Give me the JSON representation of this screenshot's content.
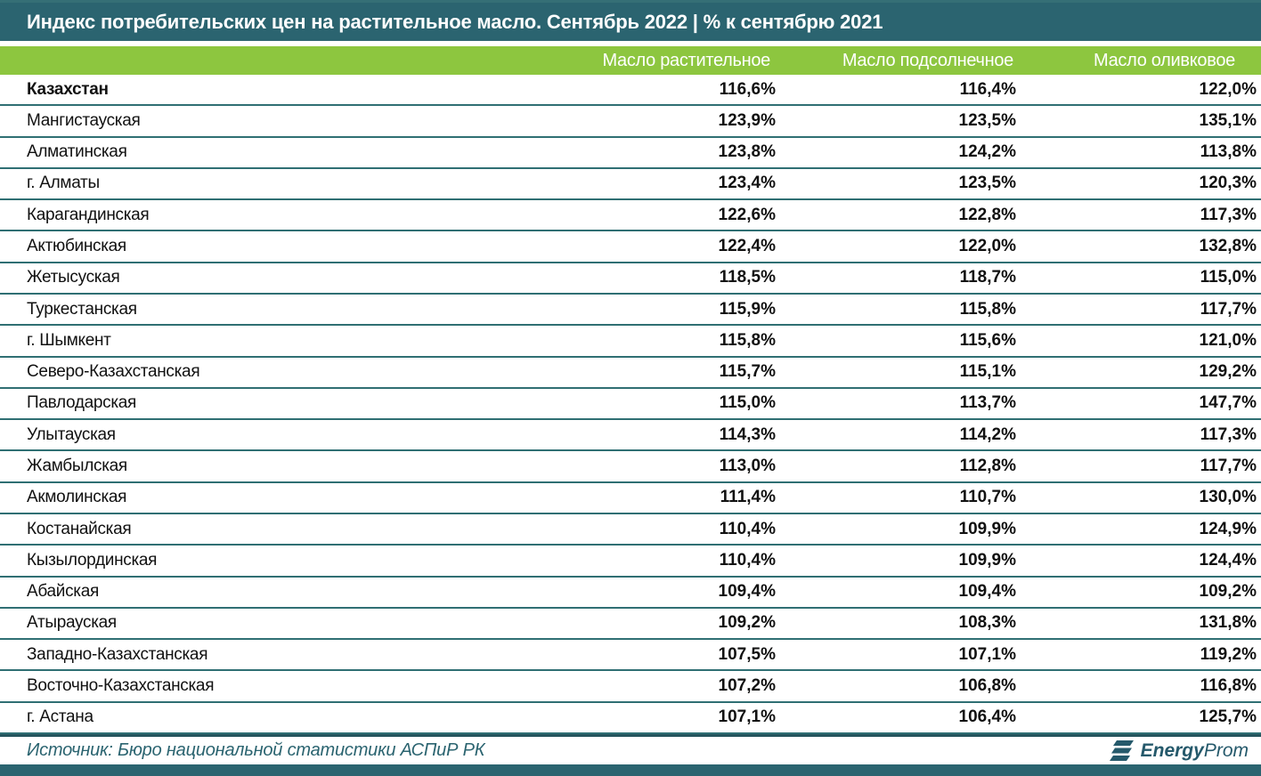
{
  "title": "Индекс потребительских цен на растительное масло. Сентябрь 2022 | % к сентябрю 2021",
  "colors": {
    "teal_bar": "#2B6470",
    "green_header": "#8DC63F",
    "row_divider": "#2F6F73",
    "footer_text": "#2B6470",
    "header_text": "#FFFFFF",
    "body_text": "#111111"
  },
  "chart_data": {
    "type": "table",
    "title": "Индекс потребительских цен на растительное масло. Сентябрь 2022 | % к сентябрю 2021",
    "columns": [
      "Масло растительное",
      "Масло подсолнечное",
      "Масло оливковое"
    ],
    "unit": "% к сентябрю 2021",
    "rows": [
      {
        "region": "Казахстан",
        "values": [
          "116,6%",
          "116,4%",
          "122,0%"
        ],
        "bold": true
      },
      {
        "region": "Мангистауская",
        "values": [
          "123,9%",
          "123,5%",
          "135,1%"
        ],
        "bold": false
      },
      {
        "region": "Алматинская",
        "values": [
          "123,8%",
          "124,2%",
          "113,8%"
        ],
        "bold": false
      },
      {
        "region": "г. Алматы",
        "values": [
          "123,4%",
          "123,5%",
          "120,3%"
        ],
        "bold": false
      },
      {
        "region": "Карагандинская",
        "values": [
          "122,6%",
          "122,8%",
          "117,3%"
        ],
        "bold": false
      },
      {
        "region": "Актюбинская",
        "values": [
          "122,4%",
          "122,0%",
          "132,8%"
        ],
        "bold": false
      },
      {
        "region": "Жетысуская",
        "values": [
          "118,5%",
          "118,7%",
          "115,0%"
        ],
        "bold": false
      },
      {
        "region": "Туркестанская",
        "values": [
          "115,9%",
          "115,8%",
          "117,7%"
        ],
        "bold": false
      },
      {
        "region": "г. Шымкент",
        "values": [
          "115,8%",
          "115,6%",
          "121,0%"
        ],
        "bold": false
      },
      {
        "region": "Северо-Казахстанская",
        "values": [
          "115,7%",
          "115,1%",
          "129,2%"
        ],
        "bold": false
      },
      {
        "region": "Павлодарская",
        "values": [
          "115,0%",
          "113,7%",
          "147,7%"
        ],
        "bold": false
      },
      {
        "region": "Улытауская",
        "values": [
          "114,3%",
          "114,2%",
          "117,3%"
        ],
        "bold": false
      },
      {
        "region": "Жамбылская",
        "values": [
          "113,0%",
          "112,8%",
          "117,7%"
        ],
        "bold": false
      },
      {
        "region": "Акмолинская",
        "values": [
          "111,4%",
          "110,7%",
          "130,0%"
        ],
        "bold": false
      },
      {
        "region": "Костанайская",
        "values": [
          "110,4%",
          "109,9%",
          "124,9%"
        ],
        "bold": false
      },
      {
        "region": "Кызылординская",
        "values": [
          "110,4%",
          "109,9%",
          "124,4%"
        ],
        "bold": false
      },
      {
        "region": "Абайская",
        "values": [
          "109,4%",
          "109,4%",
          "109,2%"
        ],
        "bold": false
      },
      {
        "region": "Атырауская",
        "values": [
          "109,2%",
          "108,3%",
          "131,8%"
        ],
        "bold": false
      },
      {
        "region": "Западно-Казахстанская",
        "values": [
          "107,5%",
          "107,1%",
          "119,2%"
        ],
        "bold": false
      },
      {
        "region": "Восточно-Казахстанская",
        "values": [
          "107,2%",
          "106,8%",
          "116,8%"
        ],
        "bold": false
      },
      {
        "region": "г. Астана",
        "values": [
          "107,1%",
          "106,4%",
          "125,7%"
        ],
        "bold": false
      }
    ]
  },
  "footer": {
    "source": "Источник: Бюро национальной статистики АСПиР РК",
    "logo_bold": "Energy",
    "logo_regular": "Prom"
  }
}
